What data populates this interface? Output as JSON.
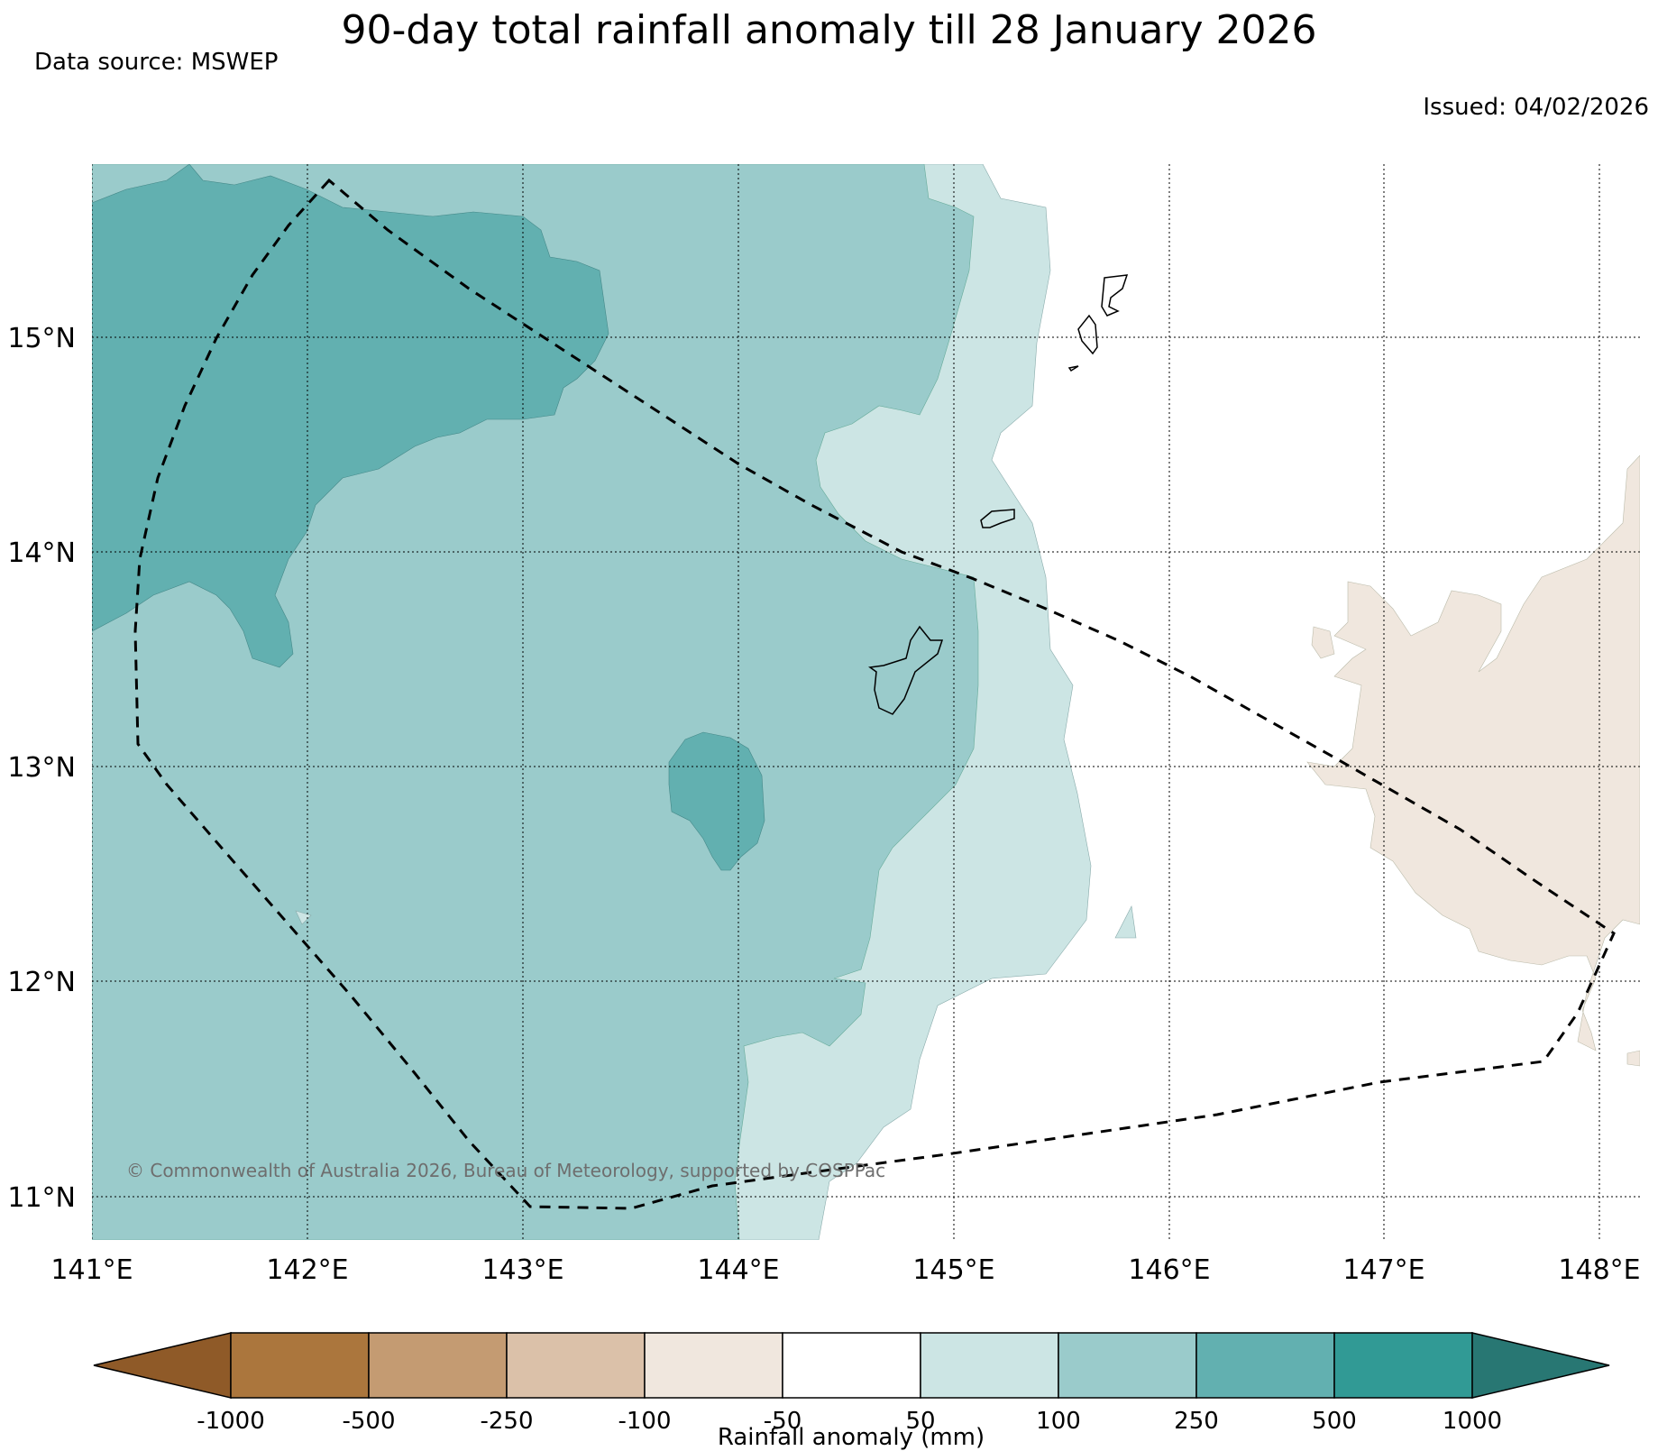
{
  "header": {
    "title": "90-day total rainfall anomaly till 28 January 2026",
    "source": "Data source: MSWEP",
    "issued": "Issued: 04/02/2026"
  },
  "map": {
    "lon_labels": [
      "141°E",
      "142°E",
      "143°E",
      "144°E",
      "145°E",
      "146°E",
      "147°E",
      "148°E"
    ],
    "lat_labels": [
      "15°N",
      "14°N",
      "13°N",
      "12°N",
      "11°N"
    ],
    "copyright": "© Commonwealth of Australia 2026, Bureau of Meteorology, supported by COSPPac"
  },
  "colorbar": {
    "label": "Rainfall anomaly (mm)",
    "ticks": [
      "-1000",
      "-500",
      "-250",
      "-100",
      "-50",
      "50",
      "100",
      "250",
      "500",
      "1000"
    ],
    "colors": {
      "lt_-1000": "#8f5a28",
      "b1": "#ab763d",
      "b2": "#c49b72",
      "b3": "#dbc1a9",
      "b4": "#f0e7de",
      "b5": "#ffffff",
      "b6": "#cce5e4",
      "b7": "#9acbcb",
      "b8": "#62b0b0",
      "b9": "#319a95",
      "gt_1000": "#287773"
    }
  }
}
